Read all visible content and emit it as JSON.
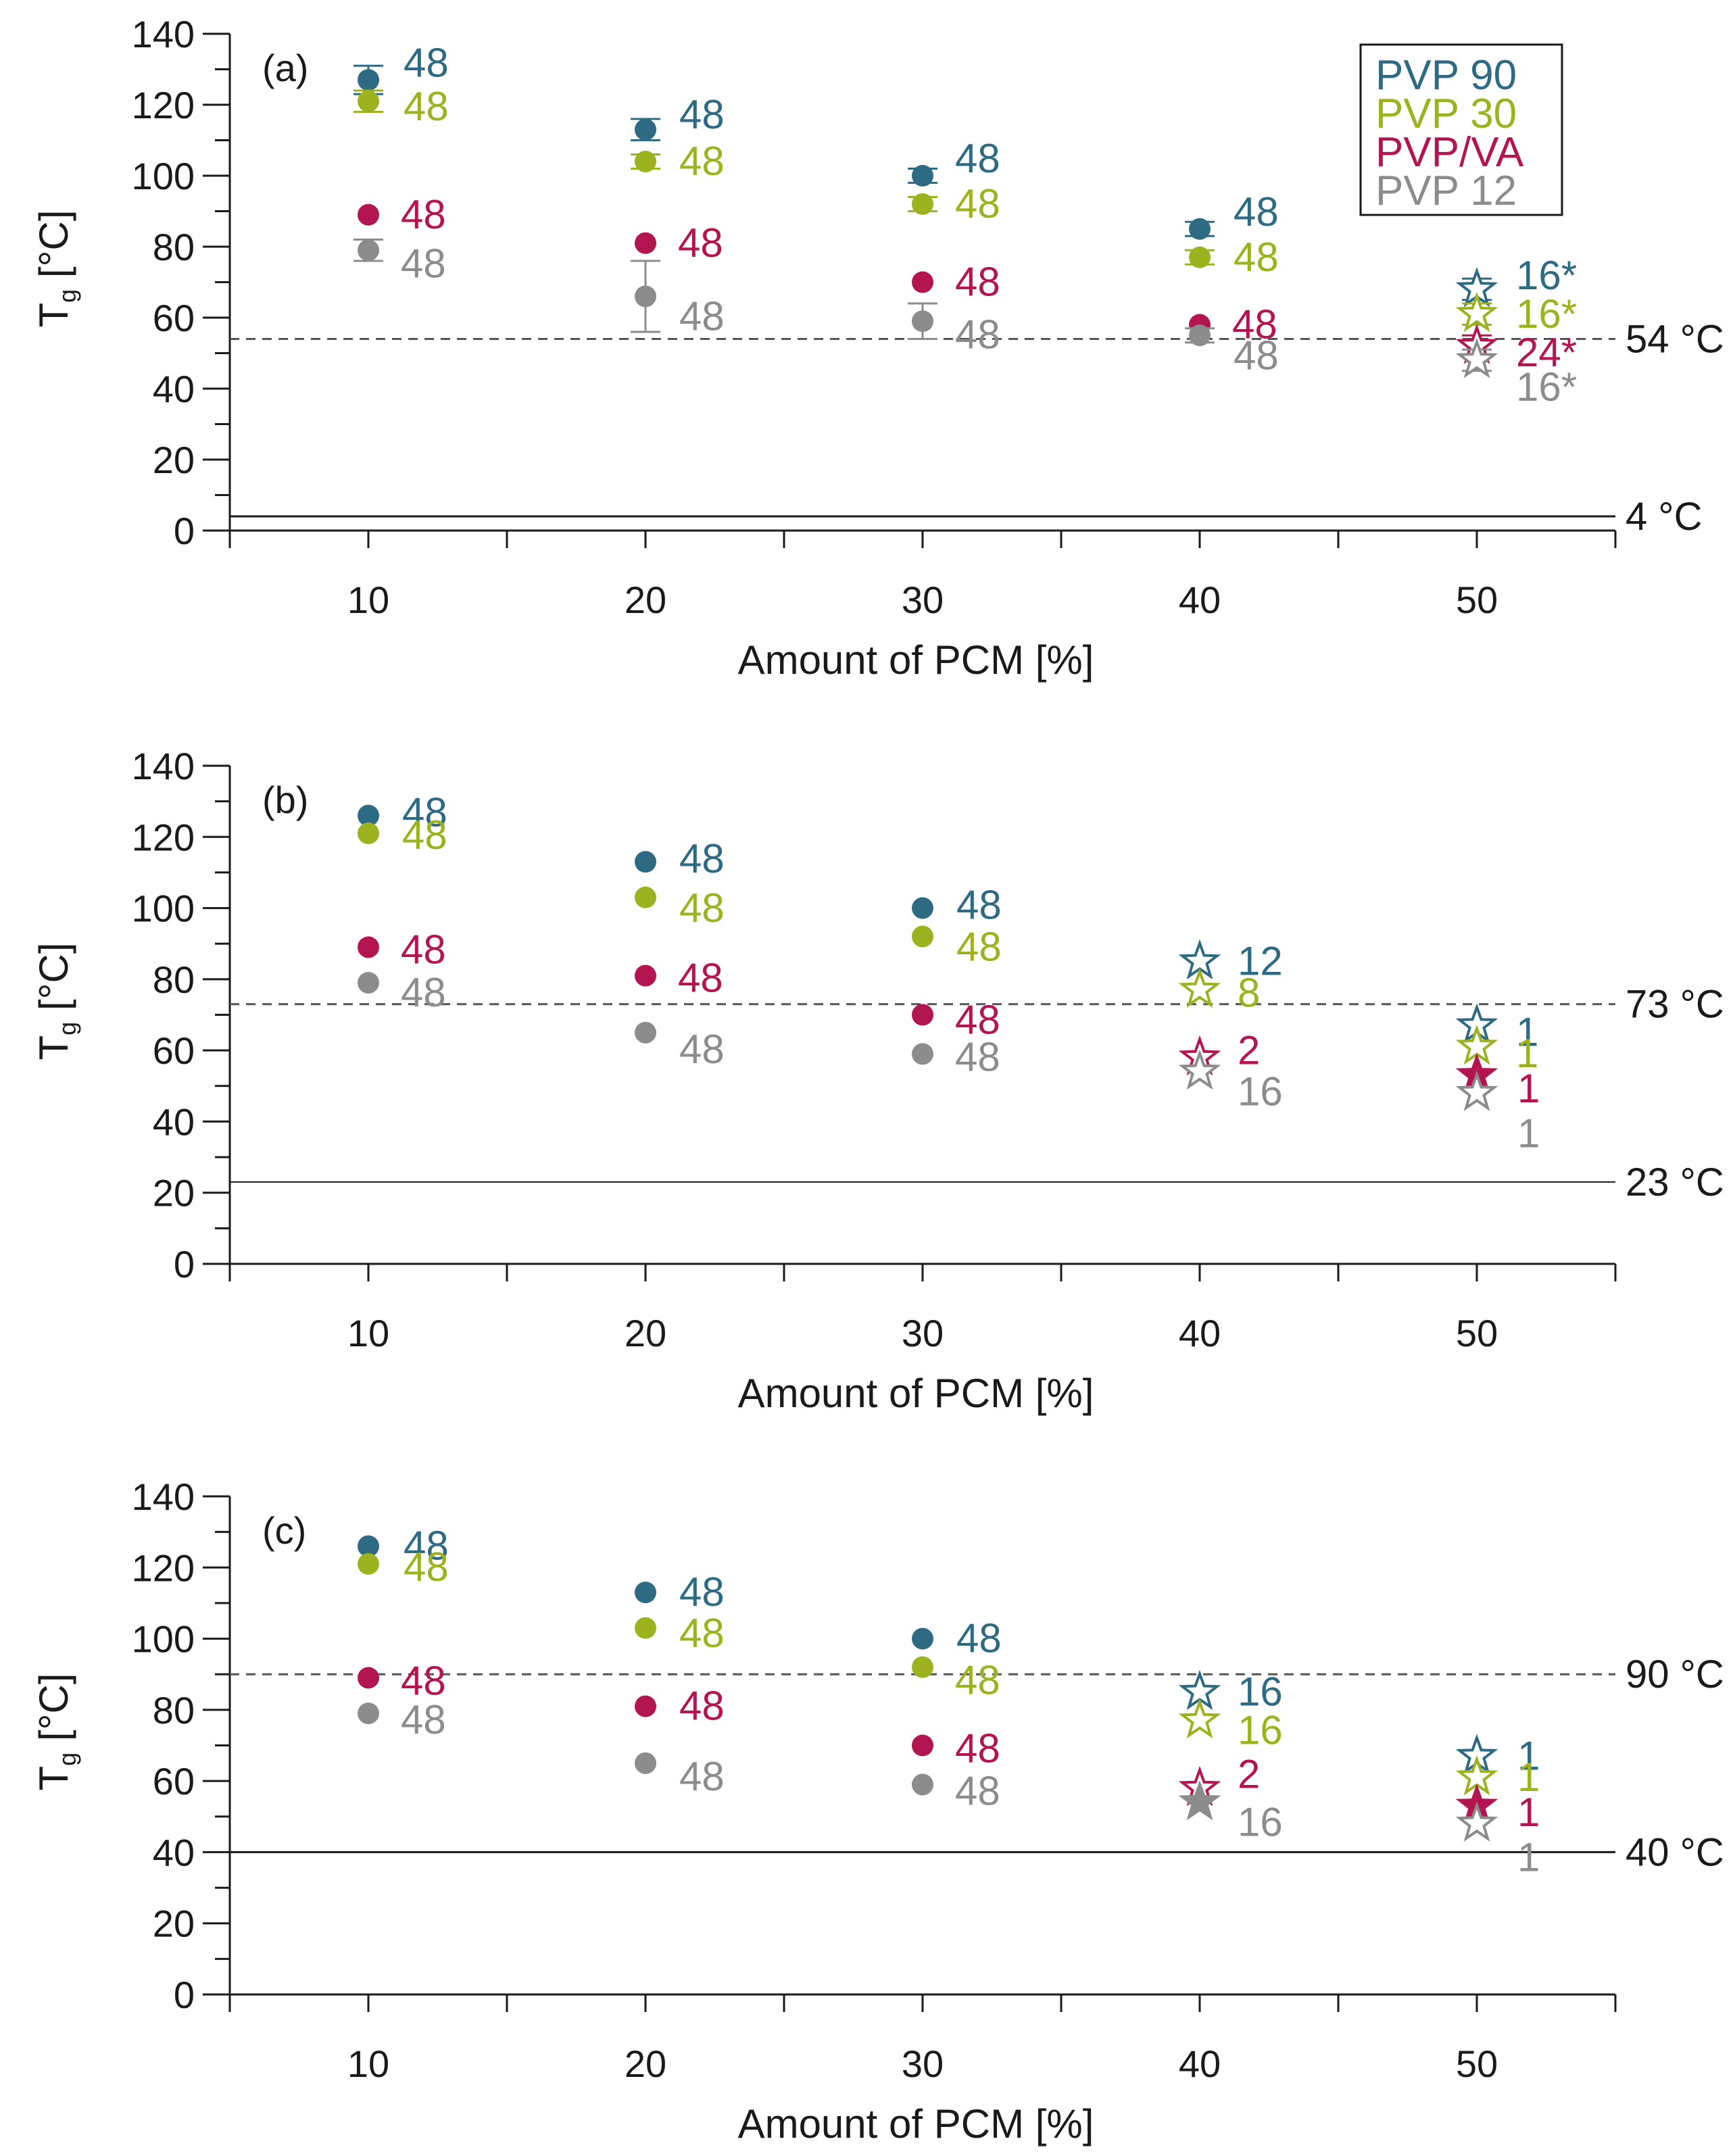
{
  "colors": {
    "PVP 90": "#2e6b82",
    "PVP 30": "#9cb21e",
    "PVP/VA": "#b2154f",
    "PVP 12": "#8c8c8c",
    "axis": "#1a1a1a",
    "dash": "#555555"
  },
  "legend": {
    "entries": [
      "PVP 90",
      "PVP 30",
      "PVP/VA",
      "PVP 12"
    ],
    "placement": "top-right of panel (a)"
  },
  "chart_data": [
    {
      "type": "scatter",
      "panel": "(a)",
      "xlabel": "Amount of PCM [%]",
      "ylabel_main": "T",
      "ylabel_sub": "g",
      "ylabel_unit": "[°C]",
      "xlim": [
        5,
        55
      ],
      "ylim": [
        0,
        140
      ],
      "xticks": [
        "10",
        "20",
        "30",
        "40",
        "50"
      ],
      "yticks": [
        "0",
        "20",
        "40",
        "60",
        "80",
        "100",
        "120",
        "140"
      ],
      "reference_lines": [
        {
          "value": 54,
          "label": "54 °C",
          "style": "dashed"
        },
        {
          "value": 4,
          "label": "4 °C",
          "style": "solid"
        }
      ],
      "series": [
        {
          "name": "PVP 90",
          "x": [
            10,
            20,
            30,
            40,
            50
          ],
          "y": [
            127,
            113,
            100,
            85,
            68
          ],
          "markers": [
            "dot",
            "dot",
            "dot",
            "dot",
            "star-open"
          ],
          "errors": [
            4,
            3,
            2,
            2,
            3
          ],
          "labels": [
            "48",
            "48",
            "48",
            "48",
            "16*"
          ]
        },
        {
          "name": "PVP 30",
          "x": [
            10,
            20,
            30,
            40,
            50
          ],
          "y": [
            121,
            104,
            92,
            77,
            61
          ],
          "markers": [
            "dot",
            "dot",
            "dot",
            "dot",
            "star-open"
          ],
          "errors": [
            3,
            2,
            2,
            2,
            3
          ],
          "labels": [
            "48",
            "48",
            "48",
            "48",
            "16*"
          ]
        },
        {
          "name": "PVP/VA",
          "x": [
            10,
            20,
            30,
            40,
            50
          ],
          "y": [
            89,
            81,
            70,
            58,
            52
          ],
          "markers": [
            "dot",
            "dot",
            "dot",
            "dot",
            "star-open"
          ],
          "errors": [
            0,
            0,
            0,
            0,
            3
          ],
          "labels": [
            "48",
            "48",
            "48",
            "48",
            "24*"
          ]
        },
        {
          "name": "PVP 12",
          "x": [
            10,
            20,
            30,
            40,
            50
          ],
          "y": [
            79,
            66,
            59,
            55,
            48
          ],
          "markers": [
            "dot",
            "dot",
            "dot",
            "dot",
            "star-open"
          ],
          "errors": [
            3,
            10,
            5,
            2,
            3
          ],
          "labels": [
            "48",
            "48",
            "48",
            "48",
            "16*"
          ]
        }
      ]
    },
    {
      "type": "scatter",
      "panel": "(b)",
      "xlabel": "Amount of PCM [%]",
      "ylabel_main": "T",
      "ylabel_sub": "g",
      "ylabel_unit": "[°C]",
      "xlim": [
        5,
        55
      ],
      "ylim": [
        0,
        140
      ],
      "xticks": [
        "10",
        "20",
        "30",
        "40",
        "50"
      ],
      "yticks": [
        "0",
        "20",
        "40",
        "60",
        "80",
        "100",
        "120",
        "140"
      ],
      "reference_lines": [
        {
          "value": 73,
          "label": "73 °C",
          "style": "dashed"
        },
        {
          "value": 23,
          "label": "23 °C",
          "style": "solid-thin"
        }
      ],
      "series": [
        {
          "name": "PVP 90",
          "x": [
            10,
            20,
            30,
            40,
            50
          ],
          "y": [
            126,
            113,
            100,
            85,
            67
          ],
          "markers": [
            "dot",
            "dot",
            "dot",
            "star-open",
            "star-open"
          ],
          "errors": [
            0,
            0,
            0,
            0,
            0
          ],
          "labels": [
            "48",
            "48",
            "48",
            "12",
            "1"
          ]
        },
        {
          "name": "PVP 30",
          "x": [
            10,
            20,
            30,
            40,
            50
          ],
          "y": [
            121,
            103,
            92,
            77,
            61
          ],
          "markers": [
            "dot",
            "dot",
            "dot",
            "star-open",
            "star-open"
          ],
          "errors": [
            0,
            0,
            0,
            0,
            0
          ],
          "labels": [
            "48",
            "48",
            "48",
            "8",
            "1"
          ]
        },
        {
          "name": "PVP/VA",
          "x": [
            10,
            20,
            30,
            40,
            50
          ],
          "y": [
            89,
            81,
            70,
            58,
            53
          ],
          "markers": [
            "dot",
            "dot",
            "dot",
            "star-open",
            "star-filled"
          ],
          "errors": [
            0,
            0,
            0,
            0,
            0
          ],
          "labels": [
            "48",
            "48",
            "48",
            "2",
            "1"
          ]
        },
        {
          "name": "PVP 12",
          "x": [
            10,
            20,
            30,
            40,
            50
          ],
          "y": [
            79,
            65,
            59,
            54,
            48
          ],
          "markers": [
            "dot",
            "dot",
            "dot",
            "star-open",
            "star-open"
          ],
          "errors": [
            0,
            0,
            0,
            0,
            0
          ],
          "labels": [
            "48",
            "48",
            "48",
            "16",
            "1"
          ]
        }
      ]
    },
    {
      "type": "scatter",
      "panel": "(c)",
      "xlabel": "Amount of PCM [%]",
      "ylabel_main": "T",
      "ylabel_sub": "g",
      "ylabel_unit": "[°C]",
      "xlim": [
        5,
        55
      ],
      "ylim": [
        0,
        140
      ],
      "xticks": [
        "10",
        "20",
        "30",
        "40",
        "50"
      ],
      "yticks": [
        "0",
        "20",
        "40",
        "60",
        "80",
        "100",
        "120",
        "140"
      ],
      "reference_lines": [
        {
          "value": 90,
          "label": "90 °C",
          "style": "dashed"
        },
        {
          "value": 40,
          "label": "40 °C",
          "style": "solid"
        }
      ],
      "series": [
        {
          "name": "PVP 90",
          "x": [
            10,
            20,
            30,
            40,
            50
          ],
          "y": [
            126,
            113,
            100,
            85,
            67
          ],
          "markers": [
            "dot",
            "dot",
            "dot",
            "star-open",
            "star-open"
          ],
          "errors": [
            0,
            0,
            0,
            0,
            0
          ],
          "labels": [
            "48",
            "48",
            "48",
            "16",
            "1"
          ]
        },
        {
          "name": "PVP 30",
          "x": [
            10,
            20,
            30,
            40,
            50
          ],
          "y": [
            121,
            103,
            92,
            77,
            61
          ],
          "markers": [
            "dot",
            "dot",
            "dot",
            "star-open",
            "star-open"
          ],
          "errors": [
            0,
            0,
            0,
            0,
            0
          ],
          "labels": [
            "48",
            "48",
            "48",
            "16",
            "1"
          ]
        },
        {
          "name": "PVP/VA",
          "x": [
            10,
            20,
            30,
            40,
            50
          ],
          "y": [
            89,
            81,
            70,
            58,
            53
          ],
          "markers": [
            "dot",
            "dot",
            "dot",
            "star-open",
            "star-filled"
          ],
          "errors": [
            0,
            0,
            0,
            0,
            0
          ],
          "labels": [
            "48",
            "48",
            "48",
            "2",
            "1"
          ]
        },
        {
          "name": "PVP 12",
          "x": [
            10,
            20,
            30,
            40,
            50
          ],
          "y": [
            79,
            65,
            59,
            54,
            48
          ],
          "markers": [
            "dot",
            "dot",
            "dot",
            "star-filled",
            "star-open"
          ],
          "errors": [
            0,
            0,
            0,
            0,
            0
          ],
          "labels": [
            "48",
            "48",
            "48",
            "16",
            "1"
          ]
        }
      ]
    }
  ]
}
